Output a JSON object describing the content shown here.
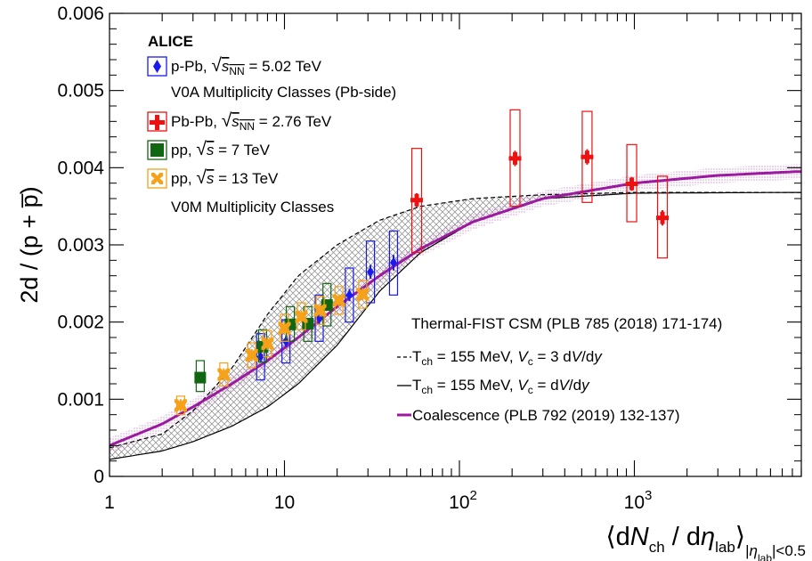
{
  "chart_data": {
    "type": "scatter",
    "x_scale": "log",
    "xlim": [
      1,
      9000
    ],
    "ylim": [
      0,
      0.006
    ],
    "xticks": [
      {
        "value": 1,
        "label": "1"
      },
      {
        "value": 10,
        "label": "10"
      },
      {
        "value": 100,
        "label": "10",
        "exp": "2"
      },
      {
        "value": 1000,
        "label": "10",
        "exp": "3"
      }
    ],
    "yticks": [
      {
        "value": 0,
        "label": "0"
      },
      {
        "value": 0.001,
        "label": "0.001"
      },
      {
        "value": 0.002,
        "label": "0.002"
      },
      {
        "value": 0.003,
        "label": "0.003"
      },
      {
        "value": 0.004,
        "label": "0.004"
      },
      {
        "value": 0.005,
        "label": "0.005"
      },
      {
        "value": 0.006,
        "label": "0.006"
      }
    ],
    "ylabel": "2d / (p + p̅)",
    "xlabel": {
      "open": "⟨d",
      "N": "N",
      "ch": "ch",
      "slash": " / d",
      "eta": "η",
      "lab": "lab",
      "close": "⟩",
      "sub_abs": "|",
      "sub_eta": "η",
      "sub_lab": "lab",
      "sub_cut": "|<0.5"
    },
    "experiment": "ALICE",
    "legend": {
      "ppb": {
        "pre": "p-Pb, ",
        "sym": "s",
        "sub": "NN",
        "post": " = 5.02 TeV"
      },
      "ppb_sub": "V0A Multiplicity Classes (Pb-side)",
      "pbpb": {
        "pre": "Pb-Pb, ",
        "sym": "s",
        "sub": "NN",
        "post": " = 2.76 TeV"
      },
      "pp7": {
        "pre": "pp, ",
        "sym": "s",
        "post": " = 7 TeV"
      },
      "pp13": {
        "pre": "pp, ",
        "sym": "s",
        "post": " = 13 TeV"
      },
      "pp_sub": "V0M Multiplicity Classes"
    },
    "model_legend": {
      "title": "Thermal-FIST CSM (PLB 785 (2018) 171-174)",
      "dashed": {
        "a": "T",
        "b": "ch",
        "c": " = 155 MeV, ",
        "d": "V",
        "e": "c",
        "f": " = 3 d",
        "g": "V",
        "h": "/d",
        "i": "y"
      },
      "solid": {
        "a": "T",
        "b": "ch",
        "c": " = 155 MeV, ",
        "d": "V",
        "e": "c",
        "f": " = d",
        "g": "V",
        "h": "/d",
        "i": "y"
      },
      "coal": "Coalescence (PLB 792 (2019) 132-137)"
    },
    "colors": {
      "pPb": "#1a1aee",
      "PbPb": "#ee1111",
      "pp7": "#116611",
      "pp13": "#f5a21a",
      "coalescence": "#9b1aa0",
      "band_purple": "#c06cc4",
      "hatch": "#888888"
    },
    "series": [
      {
        "name": "p-Pb, √s_NN = 5.02 TeV",
        "marker": "diamond",
        "color_key": "pPb",
        "points": [
          {
            "x": 7.3,
            "y": 0.00155,
            "syst": [
              0.00125,
              0.00185
            ],
            "stat": 7e-05
          },
          {
            "x": 10.2,
            "y": 0.00175,
            "syst": [
              0.00147,
              0.00203
            ],
            "stat": 7e-05
          },
          {
            "x": 15.8,
            "y": 0.00205,
            "syst": [
              0.00175,
              0.00235
            ],
            "stat": 8e-05
          },
          {
            "x": 23.5,
            "y": 0.00235,
            "syst": [
              0.002,
              0.0027
            ],
            "stat": 8e-05
          },
          {
            "x": 31,
            "y": 0.00265,
            "syst": [
              0.00225,
              0.00305
            ],
            "stat": 9e-05
          },
          {
            "x": 42,
            "y": 0.00277,
            "syst": [
              0.00235,
              0.00318
            ],
            "stat": 0.0001
          }
        ]
      },
      {
        "name": "Pb-Pb, √s_NN = 2.76 TeV",
        "marker": "cross",
        "color_key": "PbPb",
        "points": [
          {
            "x": 57,
            "y": 0.00358,
            "syst": [
              0.0029,
              0.00425
            ],
            "stat": 9e-05
          },
          {
            "x": 208,
            "y": 0.00412,
            "syst": [
              0.0035,
              0.00475
            ],
            "stat": 0.0001
          },
          {
            "x": 537,
            "y": 0.00414,
            "syst": [
              0.00355,
              0.00473
            ],
            "stat": 0.0001
          },
          {
            "x": 966,
            "y": 0.00379,
            "syst": [
              0.0033,
              0.0043
            ],
            "stat": 9e-05
          },
          {
            "x": 1447,
            "y": 0.00335,
            "syst": [
              0.00283,
              0.00389
            ],
            "stat": 0.0001
          }
        ]
      },
      {
        "name": "pp, √s = 7 TeV",
        "marker": "square",
        "color_key": "pp7",
        "points": [
          {
            "x": 3.3,
            "y": 0.00128,
            "syst": [
              0.0011,
              0.0015
            ],
            "stat": 4e-05
          },
          {
            "x": 7.5,
            "y": 0.00168,
            "syst": [
              0.00148,
              0.0019
            ],
            "stat": 4e-05
          },
          {
            "x": 10.8,
            "y": 0.00197,
            "syst": [
              0.00175,
              0.0022
            ],
            "stat": 5e-05
          },
          {
            "x": 13.6,
            "y": 0.00198,
            "syst": [
              0.00175,
              0.0022
            ],
            "stat": 5e-05
          },
          {
            "x": 17.5,
            "y": 0.00222,
            "syst": [
              0.00195,
              0.0025
            ],
            "stat": 5e-05
          }
        ]
      },
      {
        "name": "pp, √s = 13 TeV",
        "marker": "x",
        "color_key": "pp13",
        "points": [
          {
            "x": 2.55,
            "y": 0.00092,
            "syst": [
              0.0008,
              0.00104
            ],
            "stat": 8e-05
          },
          {
            "x": 4.5,
            "y": 0.00132,
            "syst": [
              0.00117,
              0.00147
            ],
            "stat": 8e-05
          },
          {
            "x": 6.5,
            "y": 0.00157,
            "syst": [
              0.00141,
              0.00173
            ],
            "stat": 8e-05
          },
          {
            "x": 8.0,
            "y": 0.00172,
            "syst": [
              0.00155,
              0.00189
            ],
            "stat": 8e-05
          },
          {
            "x": 10.0,
            "y": 0.00192,
            "syst": [
              0.00175,
              0.0021
            ],
            "stat": 8e-05
          },
          {
            "x": 12.5,
            "y": 0.00207,
            "syst": [
              0.0019,
              0.00225
            ],
            "stat": 8e-05
          },
          {
            "x": 16.0,
            "y": 0.00215,
            "syst": [
              0.00197,
              0.00233
            ],
            "stat": 8e-05
          },
          {
            "x": 20.5,
            "y": 0.00228,
            "syst": [
              0.0021,
              0.00246
            ],
            "stat": 8e-05
          },
          {
            "x": 28.0,
            "y": 0.00236,
            "syst": [
              0.00218,
              0.00254
            ],
            "stat": 8e-05
          }
        ]
      }
    ],
    "curves": {
      "dashed": [
        [
          1,
          0.00037
        ],
        [
          2,
          0.00055
        ],
        [
          3,
          0.00085
        ],
        [
          5,
          0.0014
        ],
        [
          8,
          0.0021
        ],
        [
          12,
          0.0026
        ],
        [
          20,
          0.003
        ],
        [
          35,
          0.00332
        ],
        [
          60,
          0.0035
        ],
        [
          120,
          0.0036
        ],
        [
          300,
          0.00365
        ],
        [
          1000,
          0.00368
        ],
        [
          8500,
          0.00368
        ]
      ],
      "solid": [
        [
          1,
          0.00022
        ],
        [
          2,
          0.00033
        ],
        [
          3,
          0.00045
        ],
        [
          5,
          0.00065
        ],
        [
          8,
          0.0009
        ],
        [
          12,
          0.0012
        ],
        [
          20,
          0.0017
        ],
        [
          35,
          0.0024
        ],
        [
          60,
          0.0029
        ],
        [
          120,
          0.0033
        ],
        [
          300,
          0.0036
        ],
        [
          1000,
          0.00367
        ],
        [
          8500,
          0.00368
        ]
      ],
      "coalescence": [
        [
          1,
          0.0004
        ],
        [
          2,
          0.00068
        ],
        [
          3,
          0.0009
        ],
        [
          5,
          0.0012
        ],
        [
          8,
          0.0015
        ],
        [
          12,
          0.0018
        ],
        [
          20,
          0.0022
        ],
        [
          35,
          0.0026
        ],
        [
          60,
          0.00295
        ],
        [
          120,
          0.0033
        ],
        [
          300,
          0.0036
        ],
        [
          1000,
          0.0038
        ],
        [
          3000,
          0.0039
        ],
        [
          8500,
          0.00395
        ]
      ],
      "coal_band_halfwidth": 0.0001
    }
  }
}
